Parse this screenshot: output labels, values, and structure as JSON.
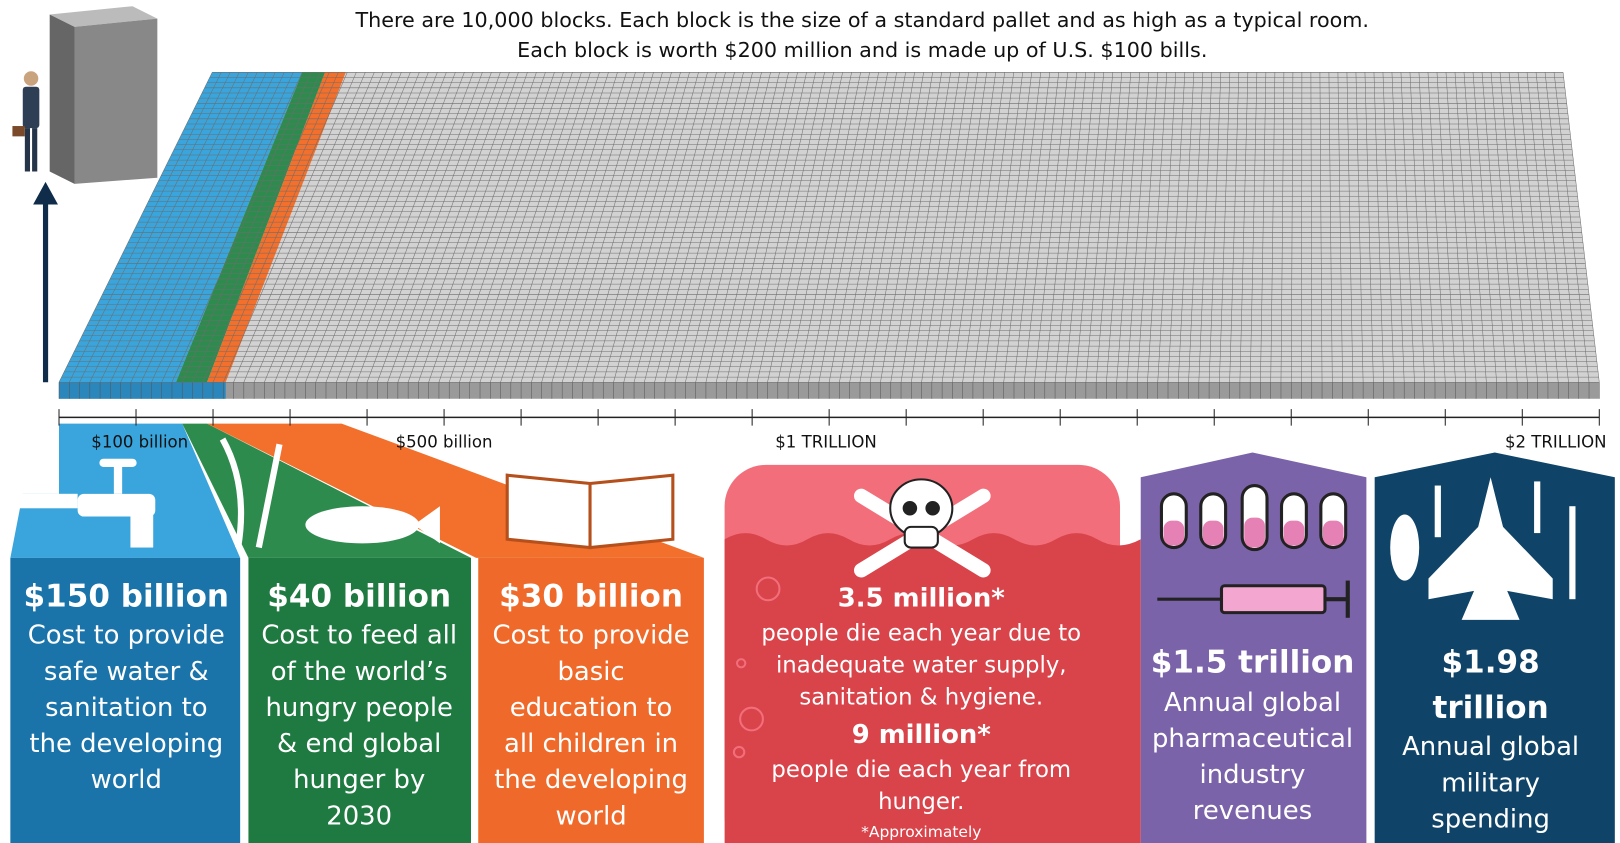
{
  "header": {
    "lines": [
      "There are 10,000 blocks. Each block is the size of a standard pallet and as high as a typical room.",
      "Each block is worth $200 million and is made up of U.S. $100 bills."
    ]
  },
  "scale": {
    "labels": [
      "$100 billion",
      "$500 billion",
      "$1 TRILLION",
      "$2 TRILLION"
    ]
  },
  "panels": [
    {
      "amount": [
        "$150 billion"
      ],
      "description": [
        "Cost to provide",
        "safe water &",
        "sanitation to",
        "the developing",
        "world"
      ]
    },
    {
      "amount": [
        "$40 billion"
      ],
      "description": [
        "Cost to feed all",
        "of the world’s",
        "hungry people",
        "& end global",
        "hunger by",
        "2030"
      ]
    },
    {
      "amount": [
        "$30 billion"
      ],
      "description": [
        "Cost to provide",
        "basic",
        "education to",
        "all children in",
        "the developing",
        "world"
      ]
    },
    {
      "amount": [
        "$1.5 trillion"
      ],
      "description": [
        "Annual global",
        "pharmaceutical",
        "industry",
        "revenues"
      ]
    },
    {
      "amount": [
        "$1.98",
        "trillion"
      ],
      "description": [
        "Annual global",
        "military",
        "spending"
      ]
    }
  ],
  "deaths": {
    "stat_1": "3.5 million*",
    "text_1": [
      "people die each year due to",
      "inadequate water supply,",
      "sanitation & hygiene."
    ],
    "stat_2": "9 million*",
    "text_2": [
      "people die each year from",
      "hunger."
    ],
    "note": "*Approximately"
  }
}
